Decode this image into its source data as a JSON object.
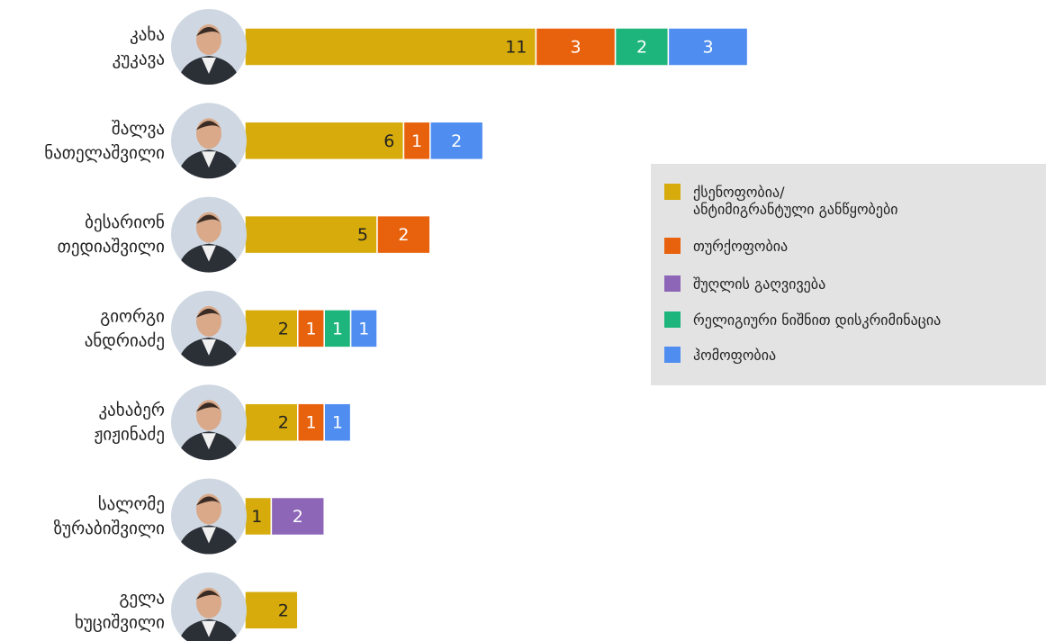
{
  "chart_data": {
    "type": "stacked-bar-horizontal",
    "categories": [
      [
        "კახა",
        "კუკავა"
      ],
      [
        "შალვა",
        "ნათელაშვილი"
      ],
      [
        "ბესარიონ",
        "თედიაშვილი"
      ],
      [
        "გიორგი",
        "ანდრიაძე"
      ],
      [
        "კახაბერ",
        "ჟიჟინაძე"
      ],
      [
        "სალომე",
        "ზურაბიშვილი"
      ],
      [
        "გელა",
        "ხუციშვილი"
      ]
    ],
    "series": [
      {
        "name": "ქსენოფობია/\nანტიმიგრანტული განწყობები",
        "color": "#d6ab0b",
        "values": [
          11,
          6,
          5,
          2,
          2,
          1,
          2
        ]
      },
      {
        "name": "თურქოფობია",
        "color": "#e8620d",
        "values": [
          3,
          1,
          2,
          1,
          1,
          null,
          null
        ]
      },
      {
        "name": "შუღლის გაღვივება",
        "color": "#8d66b8",
        "values": [
          null,
          null,
          null,
          null,
          null,
          2,
          null
        ]
      },
      {
        "name": "რელიგიური ნიშნით დისკრიმინაცია",
        "color": "#1db57c",
        "values": [
          2,
          null,
          null,
          1,
          null,
          null,
          null
        ]
      },
      {
        "name": "ჰომოფობია",
        "color": "#4f8ef0",
        "values": [
          3,
          2,
          null,
          1,
          1,
          null,
          null
        ]
      }
    ]
  }
}
